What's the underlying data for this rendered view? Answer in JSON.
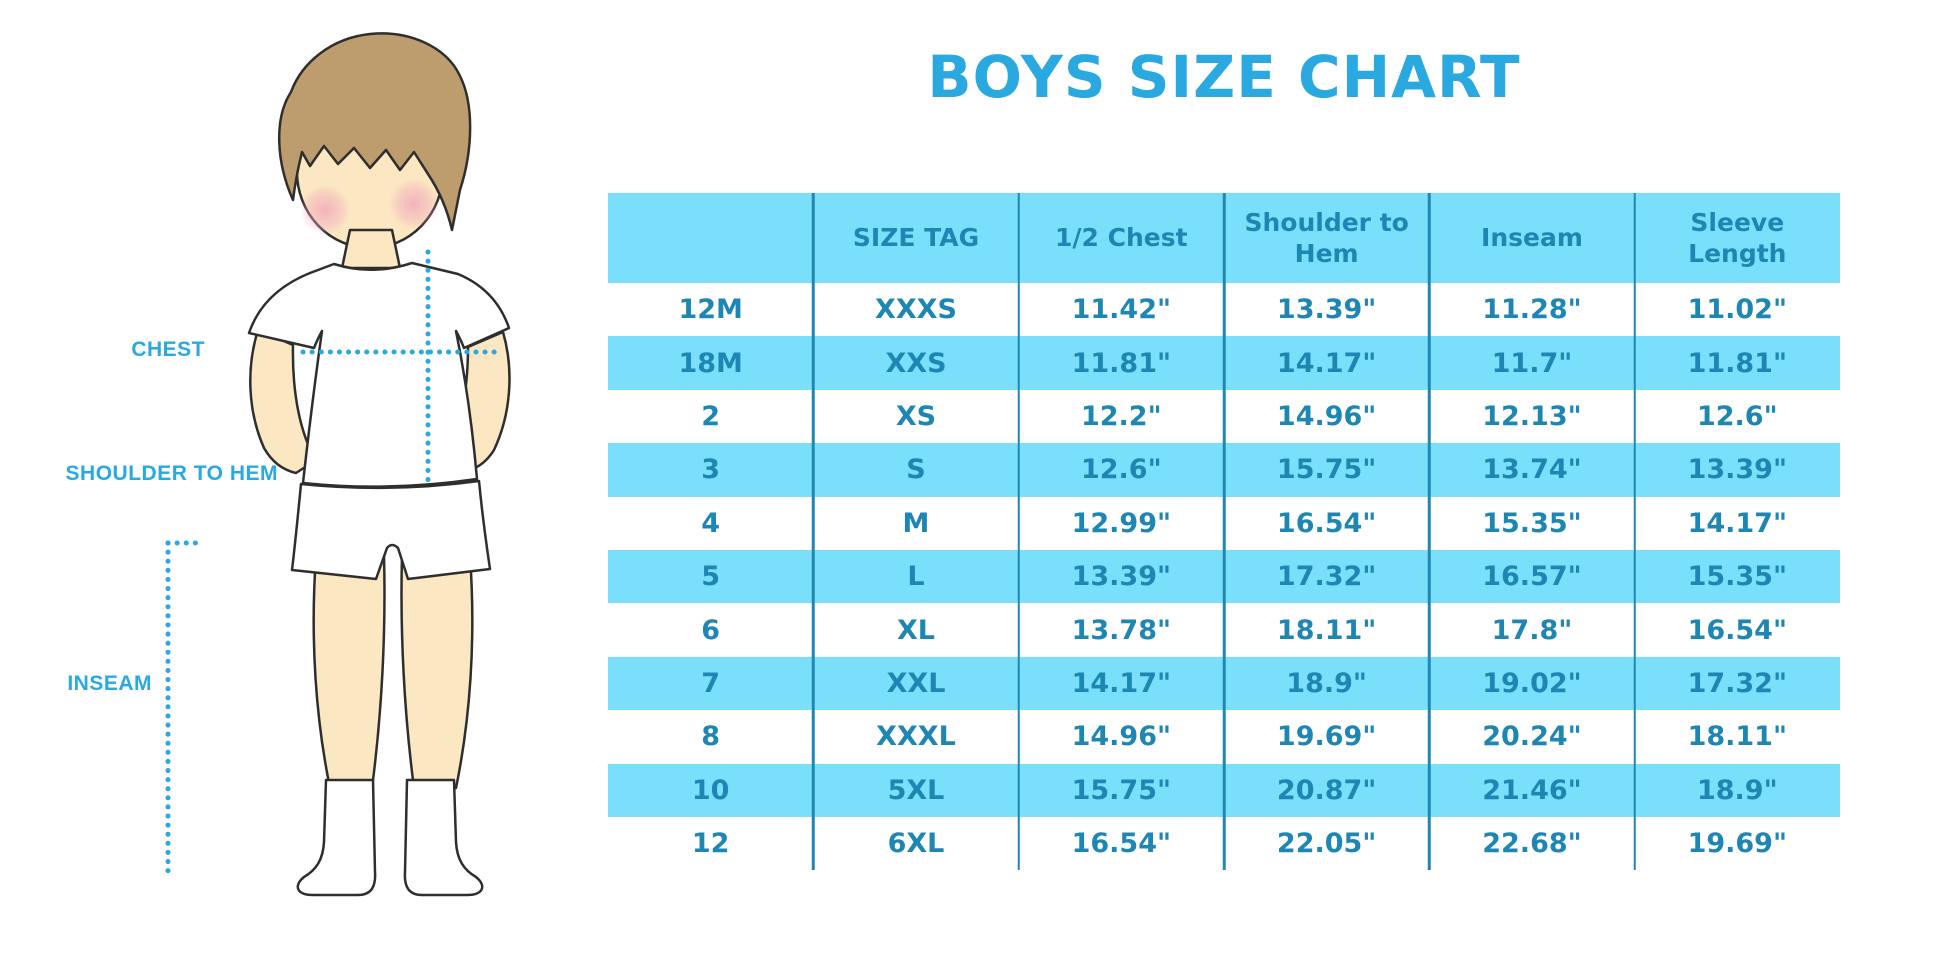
{
  "title": "BOYS SIZE CHART",
  "figure": {
    "illustration": "boy-front-view",
    "labels": {
      "chest": "CHEST",
      "shoulder_to_hem": "SHOULDER TO HEM",
      "inseam": "INSEAM"
    }
  },
  "chart_data": {
    "type": "table",
    "title": "BOYS SIZE CHART",
    "columns": [
      "",
      "SIZE TAG",
      "1/2 Chest",
      "Shoulder to Hem",
      "Inseam",
      "Sleeve Length"
    ],
    "rows": [
      [
        "12M",
        "XXXS",
        "11.42\"",
        "13.39\"",
        "11.28\"",
        "11.02\""
      ],
      [
        "18M",
        "XXS",
        "11.81\"",
        "14.17\"",
        "11.7\"",
        "11.81\""
      ],
      [
        "2",
        "XS",
        "12.2\"",
        "14.96\"",
        "12.13\"",
        "12.6\""
      ],
      [
        "3",
        "S",
        "12.6\"",
        "15.75\"",
        "13.74\"",
        "13.39\""
      ],
      [
        "4",
        "M",
        "12.99\"",
        "16.54\"",
        "15.35\"",
        "14.17\""
      ],
      [
        "5",
        "L",
        "13.39\"",
        "17.32\"",
        "16.57\"",
        "15.35\""
      ],
      [
        "6",
        "XL",
        "13.78\"",
        "18.11\"",
        "17.8\"",
        "16.54\""
      ],
      [
        "7",
        "XXL",
        "14.17\"",
        "18.9\"",
        "19.02\"",
        "17.32\""
      ],
      [
        "8",
        "XXXL",
        "14.96\"",
        "19.69\"",
        "20.24\"",
        "18.11\""
      ],
      [
        "10",
        "5XL",
        "15.75\"",
        "20.87\"",
        "21.46\"",
        "18.9\""
      ],
      [
        "12",
        "6XL",
        "16.54\"",
        "22.05\"",
        "22.68\"",
        "19.69\""
      ]
    ],
    "layout": {
      "striped_rows": "alternating",
      "stripe_start_row": 2,
      "grid": "vertical-separators-only",
      "header_background": true
    }
  },
  "colors": {
    "accent_blue": "#29A9E0",
    "table_stripe": "#7ADFFB",
    "table_text": "#1D86B2",
    "grid_line": "#1F87B2",
    "skin": "#FBE7C2",
    "hair": "#BD9C6E",
    "cheek": "#F2A9BC",
    "outline": "#2E2E2E"
  }
}
